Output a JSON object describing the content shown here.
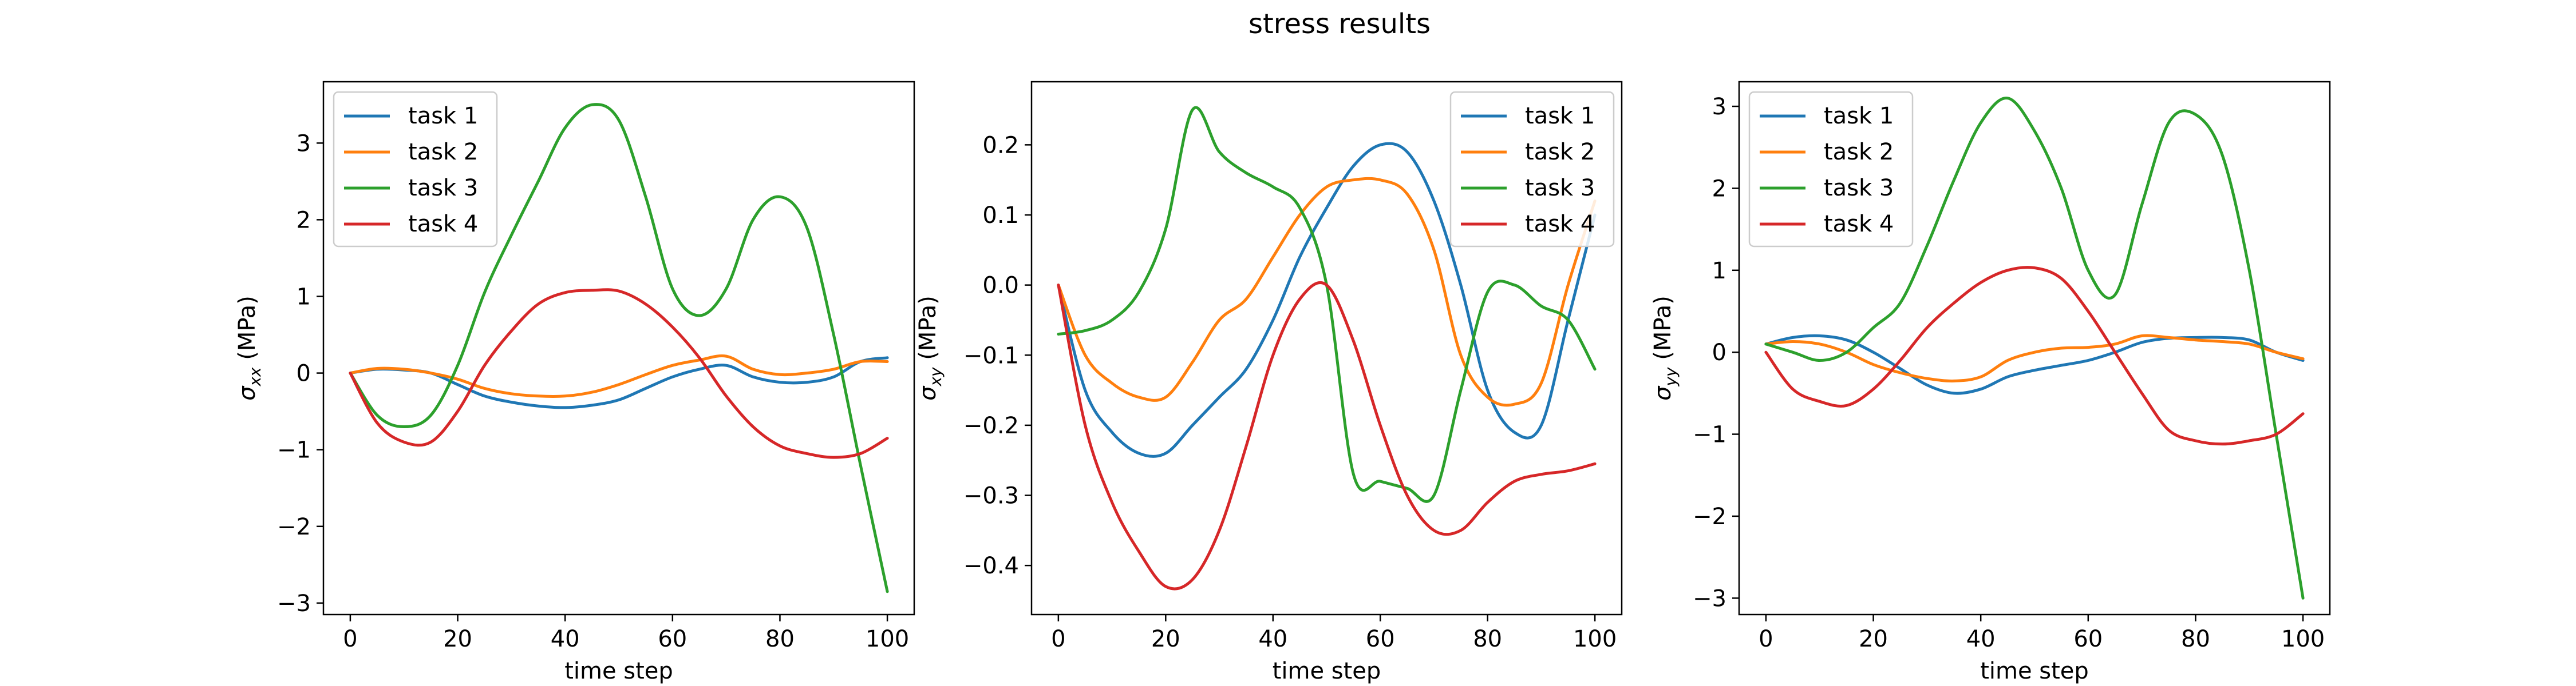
{
  "figure": {
    "title": "stress results"
  },
  "chart_data": [
    {
      "type": "line",
      "title": "",
      "xlabel": "time step",
      "ylabel": "σ_xx (MPa)",
      "ylabel_parts": {
        "symbol": "σ",
        "subscript": "xx",
        "unit": " (MPa)"
      },
      "xlim": [
        -5,
        105
      ],
      "ylim": [
        -3.15,
        3.8
      ],
      "xticks": [
        0,
        20,
        40,
        60,
        80,
        100
      ],
      "yticks": [
        -3,
        -2,
        -1,
        0,
        1,
        2,
        3
      ],
      "grid": false,
      "legend_position": "top-left",
      "x": [
        0,
        5,
        10,
        15,
        20,
        25,
        30,
        35,
        40,
        45,
        50,
        55,
        60,
        65,
        70,
        75,
        80,
        85,
        90,
        95,
        100
      ],
      "series": [
        {
          "name": "task 1",
          "color": "#1f77b4",
          "values": [
            0.0,
            0.05,
            0.04,
            0.0,
            -0.15,
            -0.3,
            -0.38,
            -0.43,
            -0.45,
            -0.42,
            -0.35,
            -0.2,
            -0.05,
            0.05,
            0.1,
            -0.05,
            -0.12,
            -0.12,
            -0.05,
            0.15,
            0.2
          ]
        },
        {
          "name": "task 2",
          "color": "#ff7f0e",
          "values": [
            0.0,
            0.06,
            0.05,
            0.0,
            -0.08,
            -0.2,
            -0.27,
            -0.3,
            -0.3,
            -0.25,
            -0.15,
            -0.02,
            0.1,
            0.17,
            0.22,
            0.05,
            -0.02,
            0.0,
            0.05,
            0.15,
            0.15
          ]
        },
        {
          "name": "task 3",
          "color": "#2ca02c",
          "values": [
            0.0,
            -0.55,
            -0.7,
            -0.55,
            0.1,
            1.05,
            1.8,
            2.5,
            3.2,
            3.5,
            3.3,
            2.3,
            1.1,
            0.75,
            1.1,
            2.0,
            2.3,
            1.9,
            0.5,
            -1.2,
            -2.85
          ]
        },
        {
          "name": "task 4",
          "color": "#d62728",
          "values": [
            0.0,
            -0.65,
            -0.9,
            -0.9,
            -0.5,
            0.1,
            0.55,
            0.9,
            1.05,
            1.08,
            1.07,
            0.9,
            0.6,
            0.2,
            -0.3,
            -0.7,
            -0.95,
            -1.05,
            -1.1,
            -1.05,
            -0.85
          ]
        }
      ]
    },
    {
      "type": "line",
      "title": "",
      "xlabel": "time step",
      "ylabel": "σ_xy (MPa)",
      "ylabel_parts": {
        "symbol": "σ",
        "subscript": "xy",
        "unit": " (MPa)"
      },
      "xlim": [
        -5,
        105
      ],
      "ylim": [
        -0.47,
        0.29
      ],
      "xticks": [
        0,
        20,
        40,
        60,
        80,
        100
      ],
      "yticks": [
        -0.4,
        -0.3,
        -0.2,
        -0.1,
        0.0,
        0.1,
        0.2
      ],
      "ytick_labels": [
        "−0.4",
        "−0.3",
        "−0.2",
        "−0.1",
        "0.0",
        "0.1",
        "0.2"
      ],
      "grid": false,
      "legend_position": "top-right",
      "x": [
        0,
        5,
        10,
        15,
        20,
        25,
        30,
        35,
        40,
        45,
        50,
        55,
        60,
        65,
        70,
        75,
        80,
        85,
        90,
        95,
        100
      ],
      "series": [
        {
          "name": "task 1",
          "color": "#1f77b4",
          "values": [
            0.0,
            -0.15,
            -0.21,
            -0.24,
            -0.24,
            -0.2,
            -0.16,
            -0.12,
            -0.05,
            0.04,
            0.11,
            0.17,
            0.2,
            0.19,
            0.12,
            0.0,
            -0.15,
            -0.21,
            -0.2,
            -0.05,
            0.1
          ]
        },
        {
          "name": "task 2",
          "color": "#ff7f0e",
          "values": [
            0.0,
            -0.1,
            -0.14,
            -0.16,
            -0.16,
            -0.11,
            -0.05,
            -0.02,
            0.04,
            0.1,
            0.14,
            0.15,
            0.15,
            0.13,
            0.05,
            -0.1,
            -0.16,
            -0.17,
            -0.14,
            0.0,
            0.12
          ]
        },
        {
          "name": "task 3",
          "color": "#2ca02c",
          "values": [
            -0.07,
            -0.065,
            -0.05,
            -0.01,
            0.08,
            0.25,
            0.19,
            0.16,
            0.14,
            0.11,
            0.0,
            -0.27,
            -0.28,
            -0.29,
            -0.3,
            -0.15,
            -0.01,
            0.0,
            -0.03,
            -0.05,
            -0.12
          ]
        },
        {
          "name": "task 4",
          "color": "#d62728",
          "values": [
            0.0,
            -0.2,
            -0.31,
            -0.38,
            -0.43,
            -0.42,
            -0.35,
            -0.23,
            -0.1,
            -0.02,
            0.0,
            -0.08,
            -0.2,
            -0.3,
            -0.35,
            -0.35,
            -0.31,
            -0.28,
            -0.27,
            -0.265,
            -0.255
          ]
        }
      ]
    },
    {
      "type": "line",
      "title": "",
      "xlabel": "time step",
      "ylabel": "σ_yy (MPa)",
      "ylabel_parts": {
        "symbol": "σ",
        "subscript": "yy",
        "unit": " (MPa)"
      },
      "xlim": [
        -5,
        105
      ],
      "ylim": [
        -3.2,
        3.3
      ],
      "xticks": [
        0,
        20,
        40,
        60,
        80,
        100
      ],
      "yticks": [
        -3,
        -2,
        -1,
        0,
        1,
        2,
        3
      ],
      "grid": false,
      "legend_position": "top-left",
      "x": [
        0,
        5,
        10,
        15,
        20,
        25,
        30,
        35,
        40,
        45,
        50,
        55,
        60,
        65,
        70,
        75,
        80,
        85,
        90,
        95,
        100
      ],
      "series": [
        {
          "name": "task 1",
          "color": "#1f77b4",
          "values": [
            0.1,
            0.18,
            0.2,
            0.15,
            0.0,
            -0.2,
            -0.4,
            -0.5,
            -0.45,
            -0.3,
            -0.22,
            -0.16,
            -0.1,
            0.0,
            0.12,
            0.17,
            0.18,
            0.18,
            0.15,
            0.0,
            -0.1
          ]
        },
        {
          "name": "task 2",
          "color": "#ff7f0e",
          "values": [
            0.1,
            0.13,
            0.1,
            0.0,
            -0.15,
            -0.25,
            -0.32,
            -0.35,
            -0.3,
            -0.1,
            0.0,
            0.05,
            0.06,
            0.1,
            0.2,
            0.18,
            0.15,
            0.13,
            0.1,
            0.0,
            -0.08
          ]
        },
        {
          "name": "task 3",
          "color": "#2ca02c",
          "values": [
            0.1,
            0.0,
            -0.1,
            0.0,
            0.3,
            0.6,
            1.3,
            2.1,
            2.8,
            3.1,
            2.7,
            2.0,
            1.0,
            0.7,
            1.8,
            2.8,
            2.9,
            2.4,
            1.0,
            -1.0,
            -3.0
          ]
        },
        {
          "name": "task 4",
          "color": "#d62728",
          "values": [
            0.0,
            -0.45,
            -0.6,
            -0.65,
            -0.45,
            -0.1,
            0.3,
            0.6,
            0.85,
            1.0,
            1.03,
            0.9,
            0.5,
            0.0,
            -0.5,
            -0.95,
            -1.08,
            -1.12,
            -1.08,
            -1.0,
            -0.75
          ]
        }
      ]
    }
  ]
}
